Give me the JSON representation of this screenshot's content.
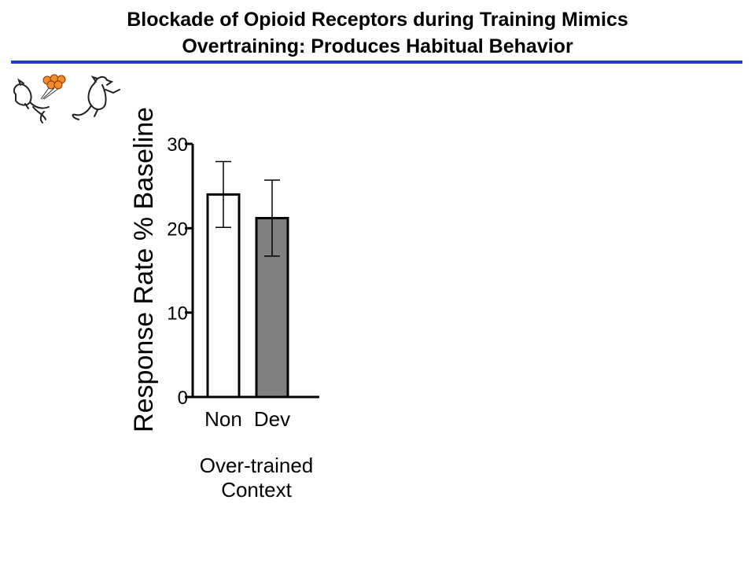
{
  "slide": {
    "title_line1": "Blockade of Opioid Receptors during Training Mimics",
    "title_line2": "Overtraining: Produces Habitual Behavior",
    "rule_color": "#1f3fbf"
  },
  "chart_data": {
    "type": "bar",
    "categories": [
      "Non",
      "Dev"
    ],
    "values": [
      24,
      21.2
    ],
    "errors": [
      3.9,
      4.5
    ],
    "bar_colors": [
      "#ffffff",
      "#808080"
    ],
    "ylabel": "Response Rate % Baseline",
    "xlabel_line1": "Over-trained",
    "xlabel_line2": "Context",
    "ylim": [
      0,
      30
    ],
    "yticks": [
      0,
      10,
      20,
      30
    ],
    "grid": false
  },
  "icons": {
    "clipart": "rats-with-balloons-icon"
  }
}
